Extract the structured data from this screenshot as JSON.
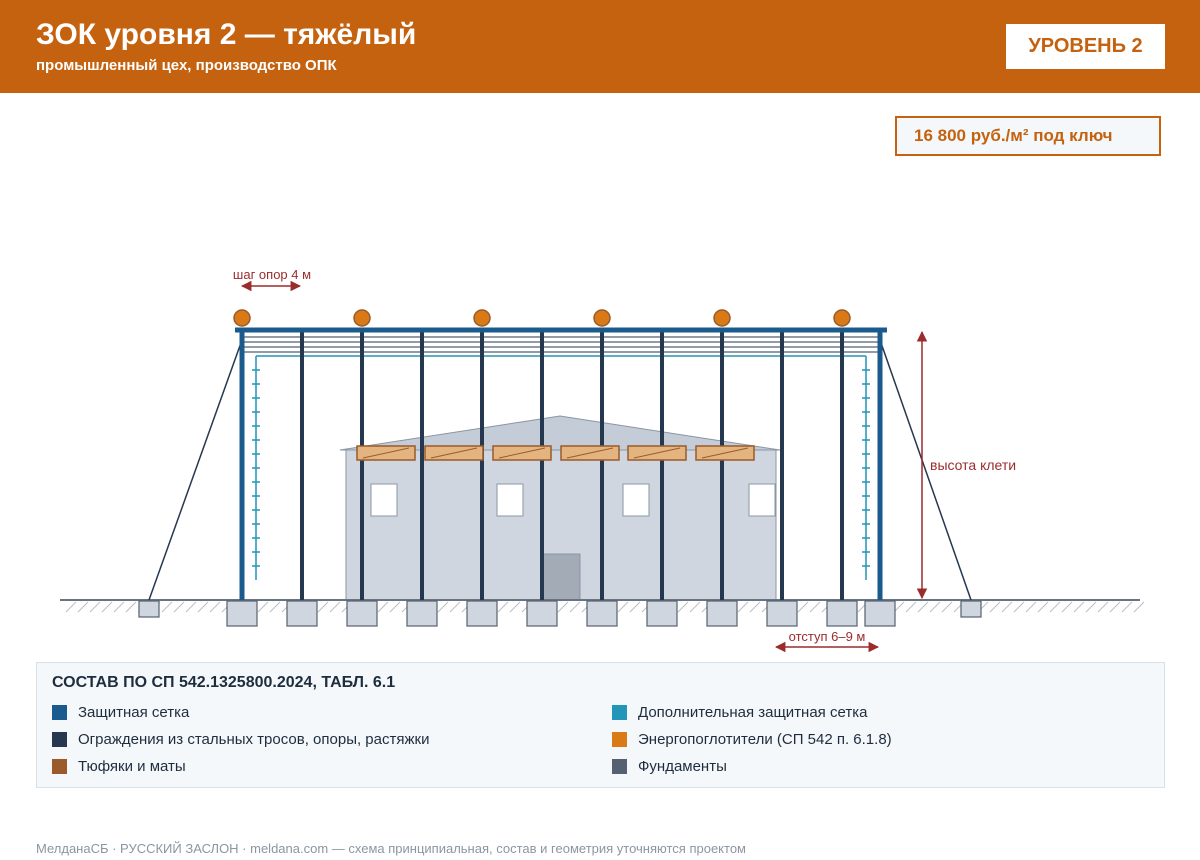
{
  "header": {
    "title": "ЗОК уровня 2 — тяжёлый",
    "subtitle": "промышленный цех, производство ОПК",
    "level_badge": "УРОВЕНЬ 2"
  },
  "price": "16 800 руб./м² под ключ",
  "diagram": {
    "annotations": {
      "pole_spacing": "шаг опор 4 м",
      "cage_height": "высота клети",
      "setback": "отступ 6–9 м"
    }
  },
  "legend": {
    "title": "СОСТАВ ПО СП 542.1325800.2024, ТАБЛ. 6.1",
    "items": [
      {
        "label": "Защитная сетка",
        "color": "#1b5a8c"
      },
      {
        "label": "Ограждения из стальных тросов, опоры, растяжки",
        "color": "#26384f"
      },
      {
        "label": "Тюфяки и маты",
        "color": "#9b5a2a"
      },
      {
        "label": "Дополнительная защитная сетка",
        "color": "#2196b6"
      },
      {
        "label": "Энергопоглотители (СП 542 п. 6.1.8)",
        "color": "#d97a16"
      },
      {
        "label": "Фундаменты",
        "color": "#556070"
      }
    ]
  },
  "footer": "МелданаСБ · РУССКИЙ ЗАСЛОН · meldana.com — схема принципиальная, состав и геометрия уточняются проектом",
  "colors": {
    "brand": "#c4620f",
    "accent_text": "#9b2c2c",
    "building": "#d0d6df"
  }
}
